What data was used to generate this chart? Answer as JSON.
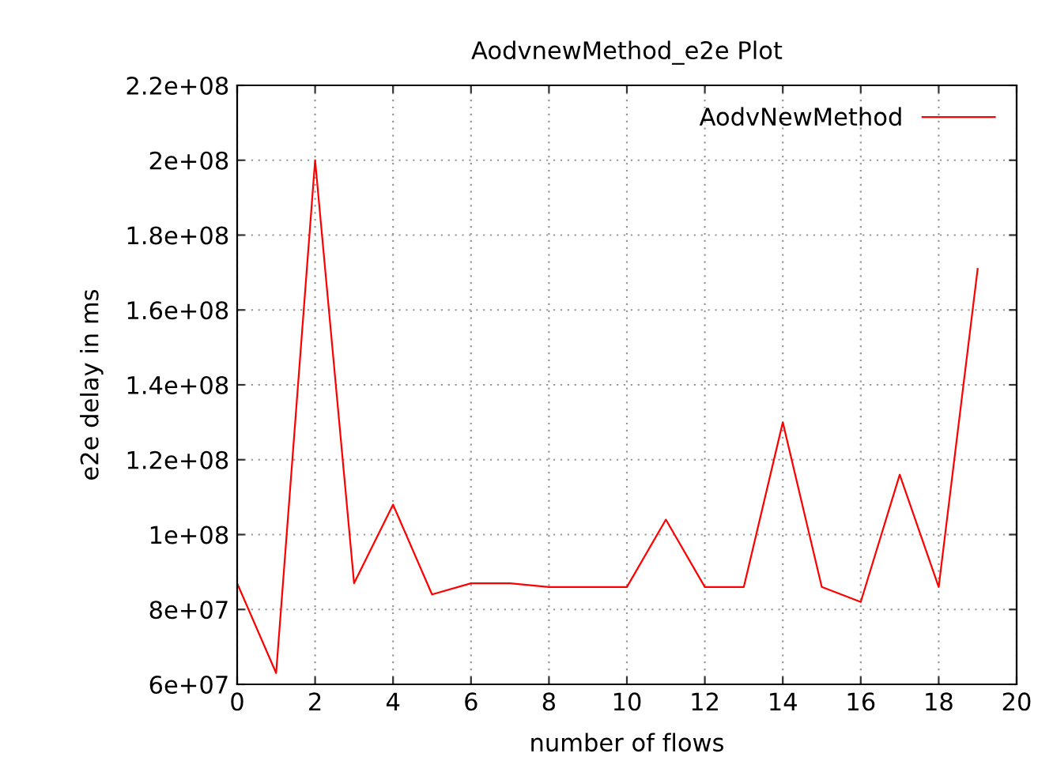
{
  "chart_data": {
    "type": "line",
    "title": "AodvnewMethod_e2e Plot",
    "xlabel": "number of flows",
    "ylabel": "e2e delay in ms",
    "x": [
      0,
      1,
      2,
      3,
      4,
      5,
      6,
      7,
      8,
      9,
      10,
      11,
      12,
      13,
      14,
      15,
      16,
      17,
      18,
      19
    ],
    "series": [
      {
        "name": "AodvNewMethod",
        "color": "#ff0000",
        "values": [
          87000000,
          63000000,
          200000000,
          87000000,
          108000000,
          84000000,
          87000000,
          87000000,
          86000000,
          86000000,
          86000000,
          104000000,
          86000000,
          86000000,
          130000000,
          86000000,
          82000000,
          116000000,
          86000000,
          171000000
        ]
      }
    ],
    "xlim": [
      0,
      20
    ],
    "xticks": [
      0,
      2,
      4,
      6,
      8,
      10,
      12,
      14,
      16,
      18,
      20
    ],
    "ylim": [
      60000000,
      220000000
    ],
    "yticks": [
      {
        "value": 60000000,
        "label": "6e+07"
      },
      {
        "value": 80000000,
        "label": "8e+07"
      },
      {
        "value": 100000000,
        "label": "1e+08"
      },
      {
        "value": 120000000,
        "label": "1.2e+08"
      },
      {
        "value": 140000000,
        "label": "1.4e+08"
      },
      {
        "value": 160000000,
        "label": "1.6e+08"
      },
      {
        "value": 180000000,
        "label": "1.8e+08"
      },
      {
        "value": 200000000,
        "label": "2e+08"
      },
      {
        "value": 220000000,
        "label": "2.2e+08"
      }
    ],
    "grid": true,
    "legend": "top right",
    "marker": "none",
    "line_style": "solid"
  }
}
